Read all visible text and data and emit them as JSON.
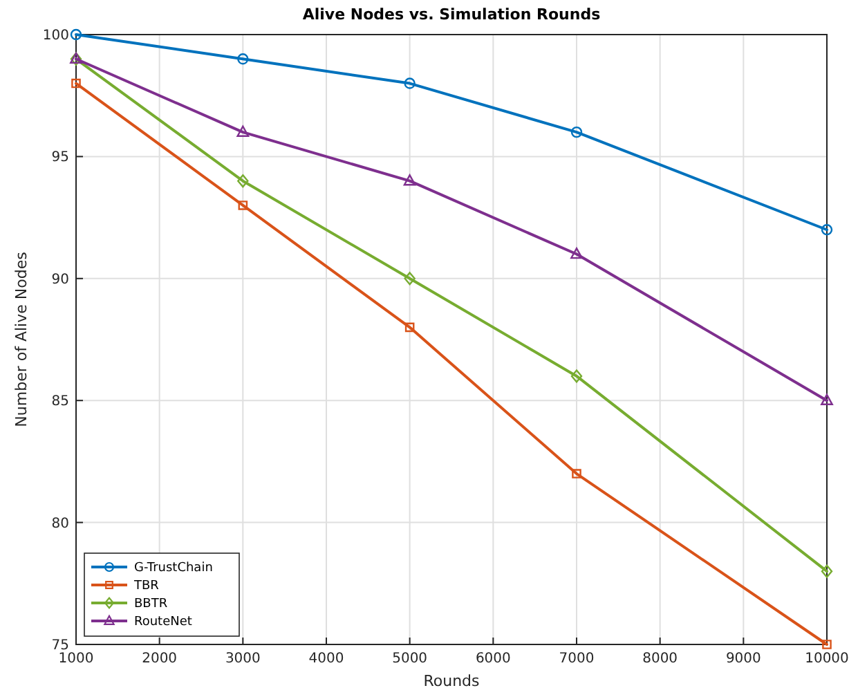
{
  "chart_data": {
    "type": "line",
    "title": "Alive Nodes vs. Simulation Rounds",
    "xlabel": "Rounds",
    "ylabel": "Number of Alive Nodes",
    "x": [
      1000,
      3000,
      5000,
      7000,
      10000
    ],
    "series": [
      {
        "name": "G-TrustChain",
        "color": "#0072bd",
        "marker": "circle",
        "values": [
          100,
          99,
          98,
          96,
          92
        ]
      },
      {
        "name": "TBR",
        "color": "#d95319",
        "marker": "square",
        "values": [
          98,
          93,
          88,
          82,
          75
        ]
      },
      {
        "name": "BBTR",
        "color": "#77ac30",
        "marker": "diamond",
        "values": [
          99,
          94,
          90,
          86,
          78
        ]
      },
      {
        "name": "RouteNet",
        "color": "#7e2f8e",
        "marker": "triangle",
        "values": [
          99,
          96,
          94,
          91,
          85
        ]
      }
    ],
    "xlim": [
      1000,
      10000
    ],
    "xticks": [
      1000,
      2000,
      3000,
      4000,
      5000,
      6000,
      7000,
      8000,
      9000,
      10000
    ],
    "ylim": [
      75,
      100
    ],
    "yticks": [
      75,
      80,
      85,
      90,
      95,
      100
    ],
    "grid": true,
    "legend": "bottom left",
    "line_style": "solid"
  }
}
